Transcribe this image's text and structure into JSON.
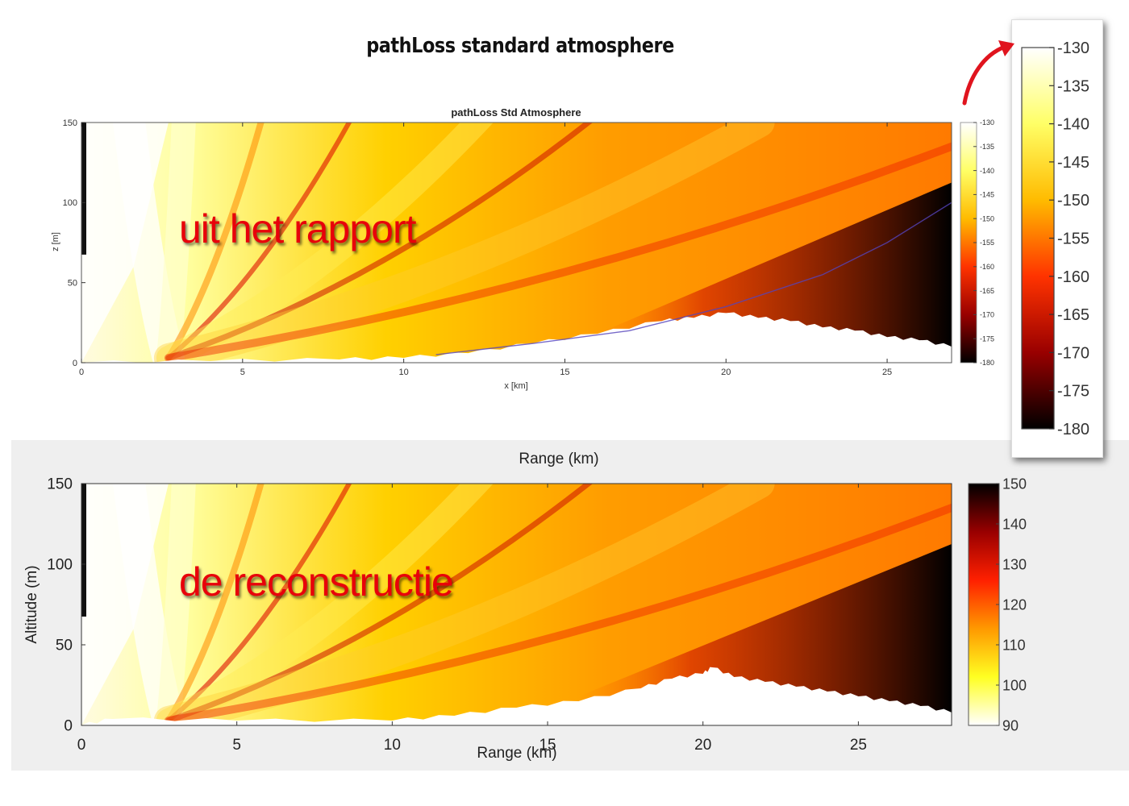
{
  "page_title": "pathLoss standard atmosphere",
  "overlay_top": "uit het rapport",
  "overlay_bottom": "de reconstructie",
  "chart_data": [
    {
      "type": "heatmap",
      "title": "pathLoss Std Atmosphere",
      "xlabel": "x [km]",
      "ylabel": "z [m]",
      "xlim": [
        0,
        27
      ],
      "ylim": [
        0,
        150
      ],
      "xticks": [
        0,
        5,
        10,
        15,
        20,
        25
      ],
      "yticks": [
        0,
        50,
        100,
        150
      ],
      "colorbar": {
        "ticks": [
          -130,
          -135,
          -140,
          -145,
          -150,
          -155,
          -160,
          -165,
          -170,
          -175,
          -180
        ],
        "range": [
          -180,
          -130
        ]
      },
      "terrain_km_m": [
        [
          0,
          0
        ],
        [
          4,
          1
        ],
        [
          8,
          2
        ],
        [
          10,
          3
        ],
        [
          12,
          6
        ],
        [
          14,
          12
        ],
        [
          16,
          18
        ],
        [
          18,
          26
        ],
        [
          19,
          28
        ],
        [
          20,
          31
        ],
        [
          21,
          28
        ],
        [
          22,
          26
        ],
        [
          23,
          22
        ],
        [
          24,
          20
        ],
        [
          25,
          16
        ],
        [
          26,
          14
        ],
        [
          27,
          10
        ]
      ],
      "horizon_line_km_m": [
        [
          11,
          5
        ],
        [
          14,
          12
        ],
        [
          17,
          20
        ],
        [
          20,
          35
        ],
        [
          23,
          55
        ],
        [
          25,
          75
        ],
        [
          27,
          100
        ]
      ],
      "grid": false
    },
    {
      "type": "heatmap",
      "title": "Range (km)",
      "xlabel": "Range (km)",
      "ylabel": "Altitude (m)",
      "xlim": [
        0,
        28
      ],
      "ylim": [
        0,
        150
      ],
      "xticks": [
        0,
        5,
        10,
        15,
        20,
        25
      ],
      "yticks": [
        0,
        50,
        100,
        150
      ],
      "colorbar": {
        "ticks": [
          150,
          140,
          130,
          120,
          110,
          100,
          90
        ],
        "range": [
          90,
          150
        ]
      },
      "terrain_km_m": [
        [
          0,
          0
        ],
        [
          1,
          4
        ],
        [
          5,
          3
        ],
        [
          10,
          3
        ],
        [
          12,
          6
        ],
        [
          14,
          11
        ],
        [
          16,
          15
        ],
        [
          18,
          23
        ],
        [
          19,
          29
        ],
        [
          20,
          32
        ],
        [
          20.3,
          36
        ],
        [
          21,
          30
        ],
        [
          22,
          27
        ],
        [
          23,
          24
        ],
        [
          24,
          21
        ],
        [
          25,
          18
        ],
        [
          26,
          15
        ],
        [
          27,
          12
        ],
        [
          28,
          8
        ]
      ],
      "grid": false
    }
  ],
  "colorbar_zoom": {
    "ticks": [
      -130,
      -135,
      -140,
      -145,
      -150,
      -155,
      -160,
      -165,
      -170,
      -175,
      -180
    ]
  }
}
